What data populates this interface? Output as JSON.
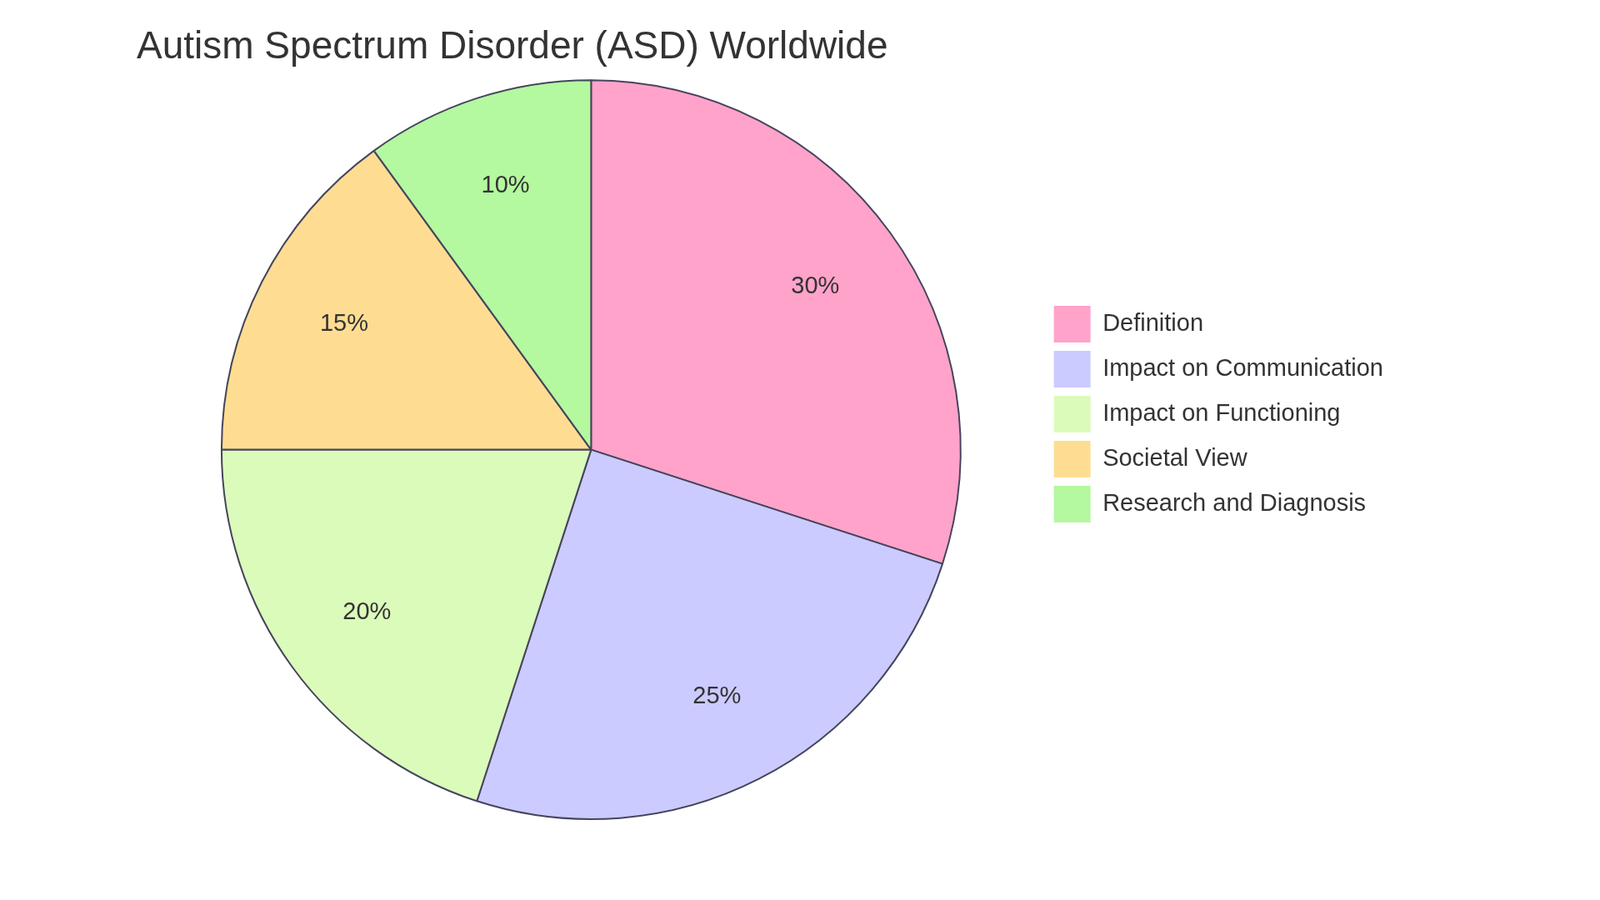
{
  "chart_data": {
    "type": "pie",
    "title": "Autism Spectrum Disorder (ASD) Worldwide",
    "categories": [
      "Definition",
      "Impact on Communication",
      "Impact on Functioning",
      "Societal View",
      "Research and Diagnosis"
    ],
    "values": [
      30,
      25,
      20,
      15,
      10
    ],
    "value_labels": [
      "30%",
      "25%",
      "20%",
      "15%",
      "10%"
    ],
    "colors": [
      "#ffa3cb",
      "#cbcbff",
      "#dbfbbb",
      "#fedd93",
      "#b4f8a0"
    ],
    "data_labels": true,
    "legend": "right"
  }
}
